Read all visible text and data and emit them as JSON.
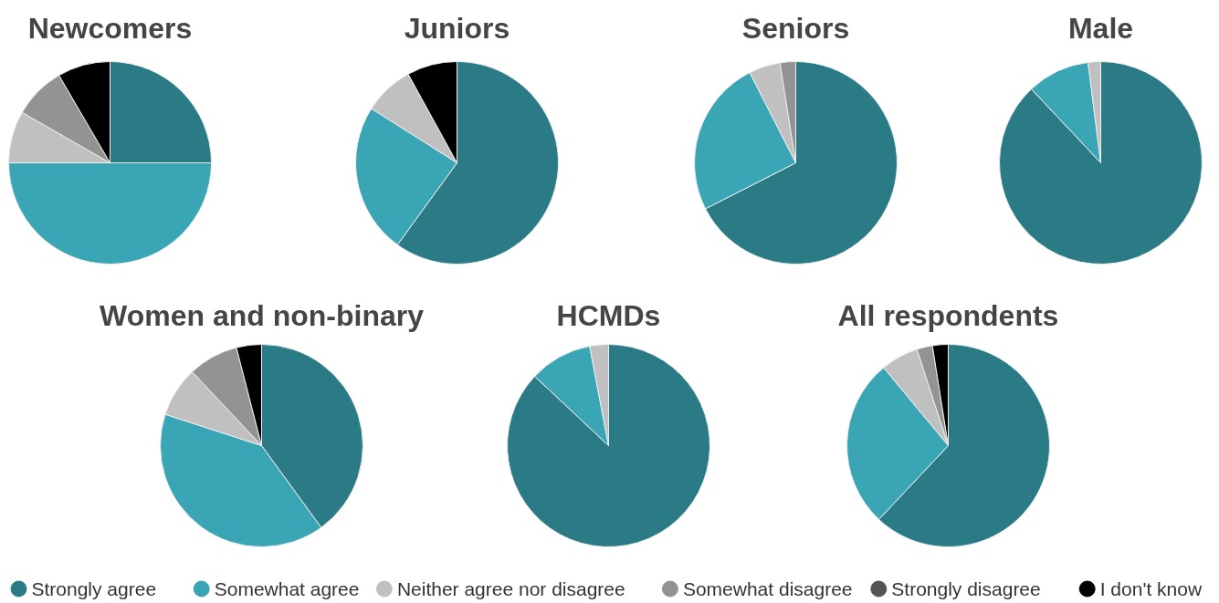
{
  "chart_data": [
    {
      "type": "pie",
      "title": "Newcomers",
      "categories": [
        null,
        null,
        null,
        null,
        null,
        null
      ],
      "values": [
        25,
        50,
        8.3,
        8.3,
        0,
        8.4
      ],
      "colors": [
        "#2b7b87",
        "#3aa5b4",
        "#c0c0c0",
        "#939393",
        "#555555",
        "#000000"
      ]
    },
    {
      "type": "pie",
      "title": "Juniors",
      "categories": [
        null,
        null,
        null,
        null,
        null,
        null
      ],
      "values": [
        60,
        24,
        8,
        0,
        0,
        8
      ],
      "colors": [
        "#2b7b87",
        "#3aa5b4",
        "#c0c0c0",
        "#939393",
        "#555555",
        "#000000"
      ]
    },
    {
      "type": "pie",
      "title": "Seniors",
      "categories": [
        null,
        null,
        null,
        null,
        null,
        null
      ],
      "values": [
        67.5,
        25,
        5,
        2.5,
        0,
        0
      ],
      "colors": [
        "#2b7b87",
        "#3aa5b4",
        "#c0c0c0",
        "#939393",
        "#555555",
        "#000000"
      ]
    },
    {
      "type": "pie",
      "title": "Male",
      "categories": [
        null,
        null,
        null,
        null,
        null,
        null
      ],
      "values": [
        88,
        10,
        2,
        0,
        0,
        0
      ],
      "colors": [
        "#2b7b87",
        "#3aa5b4",
        "#c0c0c0",
        "#939393",
        "#555555",
        "#000000"
      ]
    },
    {
      "type": "pie",
      "title": "Women and non-binary",
      "categories": [
        null,
        null,
        null,
        null,
        null,
        null
      ],
      "values": [
        40,
        40,
        8,
        8,
        0,
        4
      ],
      "colors": [
        "#2b7b87",
        "#3aa5b4",
        "#c0c0c0",
        "#939393",
        "#555555",
        "#000000"
      ]
    },
    {
      "type": "pie",
      "title": "HCMDs",
      "categories": [
        null,
        null,
        null,
        null,
        null,
        null
      ],
      "values": [
        87,
        10,
        3,
        0,
        0,
        0
      ],
      "colors": [
        "#2b7b87",
        "#3aa5b4",
        "#c0c0c0",
        "#939393",
        "#555555",
        "#000000"
      ]
    },
    {
      "type": "pie",
      "title": "All respondents",
      "categories": [
        "Strongly agree",
        "Somewhat agree",
        "Neither agree nor disagree",
        "Somewhat disagree",
        "Strongly disagree",
        "I don't know"
      ],
      "values": [
        62,
        27,
        6,
        2.5,
        0,
        2.5
      ],
      "colors": [
        "#2b7b87",
        "#3aa5b4",
        "#c0c0c0",
        "#939393",
        "#555555",
        "#000000"
      ],
      "legend": "bottom"
    }
  ]
}
